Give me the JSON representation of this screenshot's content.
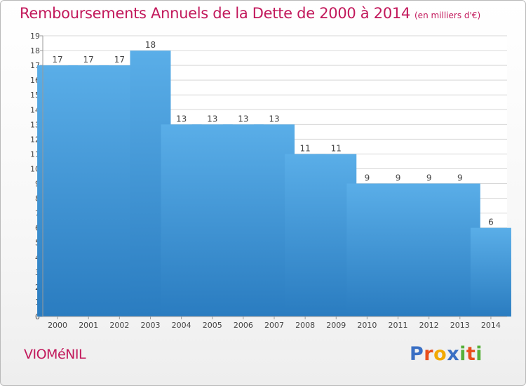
{
  "chart_data": {
    "type": "bar",
    "title": "Remboursements Annuels de la Dette de 2000 à 2014",
    "unit_label": "(en milliers d'€)",
    "categories": [
      "2000",
      "2001",
      "2002",
      "2003",
      "2004",
      "2005",
      "2006",
      "2007",
      "2008",
      "2009",
      "2010",
      "2011",
      "2012",
      "2013",
      "2014"
    ],
    "values": [
      17,
      17,
      17,
      18,
      13,
      13,
      13,
      13,
      11,
      11,
      9,
      9,
      9,
      9,
      6
    ],
    "ylim": [
      0,
      19
    ],
    "yticks": [
      0,
      1,
      2,
      3,
      4,
      5,
      6,
      7,
      8,
      9,
      10,
      11,
      12,
      13,
      14,
      15,
      16,
      17,
      18,
      19
    ],
    "grid": true,
    "legend": "none",
    "bar_color_top": "#5aaee8",
    "bar_color_bottom": "#2a7cc0"
  },
  "footer": {
    "commune": "VIOMéNIL",
    "brand": "Proxiti",
    "brand_letters": [
      {
        "char": "P",
        "color": "#3a6fc4"
      },
      {
        "char": "r",
        "color": "#e94e1b"
      },
      {
        "char": "o",
        "color": "#f2a900"
      },
      {
        "char": "x",
        "color": "#3a6fc4"
      },
      {
        "char": "i",
        "color": "#57b03a"
      },
      {
        "char": "t",
        "color": "#e94e1b"
      },
      {
        "char": "i",
        "color": "#57b03a"
      }
    ]
  },
  "colors": {
    "title": "#c2185b",
    "grid": "#d8d8d8",
    "axis_text": "#444444"
  }
}
